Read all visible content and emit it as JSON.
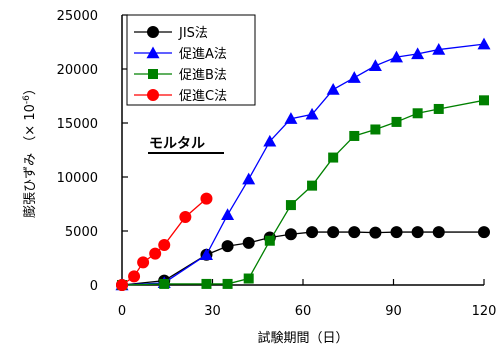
{
  "chart_data": {
    "type": "line",
    "xlabel": "試験期間（日）",
    "ylabel_main": "膨張ひずみ",
    "ylabel_unit": "（× 10",
    "ylabel_exp": "-6",
    "ylabel_close": "）",
    "xlim": [
      0,
      120
    ],
    "ylim": [
      0,
      25000
    ],
    "xticks": [
      0,
      30,
      60,
      90,
      120
    ],
    "yticks": [
      0,
      5000,
      10000,
      15000,
      20000,
      25000
    ],
    "grid": false,
    "legend_position": "top-left",
    "annotation": "モルタル",
    "series": [
      {
        "name": "JIS法",
        "color": "#000000",
        "marker": "circle",
        "x": [
          0,
          14,
          28,
          35,
          42,
          49,
          56,
          63,
          70,
          77,
          84,
          91,
          98,
          105,
          120
        ],
        "y": [
          0,
          400,
          2800,
          3600,
          3900,
          4400,
          4700,
          4900,
          4900,
          4900,
          4850,
          4900,
          4900,
          4900,
          4900
        ]
      },
      {
        "name": "促進A法",
        "color": "#0000FF",
        "marker": "triangle",
        "x": [
          0,
          14,
          28,
          35,
          42,
          49,
          56,
          63,
          70,
          77,
          84,
          91,
          98,
          105,
          120
        ],
        "y": [
          0,
          200,
          2800,
          6500,
          9800,
          13300,
          15400,
          15800,
          18100,
          19200,
          20300,
          21100,
          21400,
          21800,
          22300
        ]
      },
      {
        "name": "促進B法",
        "color": "#008000",
        "marker": "square",
        "x": [
          0,
          14,
          28,
          35,
          42,
          49,
          56,
          63,
          70,
          77,
          84,
          91,
          98,
          105,
          120
        ],
        "y": [
          0,
          100,
          100,
          100,
          600,
          4100,
          7400,
          9200,
          11800,
          13800,
          14400,
          15100,
          15900,
          16300,
          17100
        ]
      },
      {
        "name": "促進C法",
        "color": "#FF0000",
        "marker": "circle",
        "x": [
          0,
          4,
          7,
          11,
          14,
          21,
          28
        ],
        "y": [
          0,
          800,
          2100,
          2900,
          3700,
          6300,
          8000
        ]
      }
    ]
  }
}
